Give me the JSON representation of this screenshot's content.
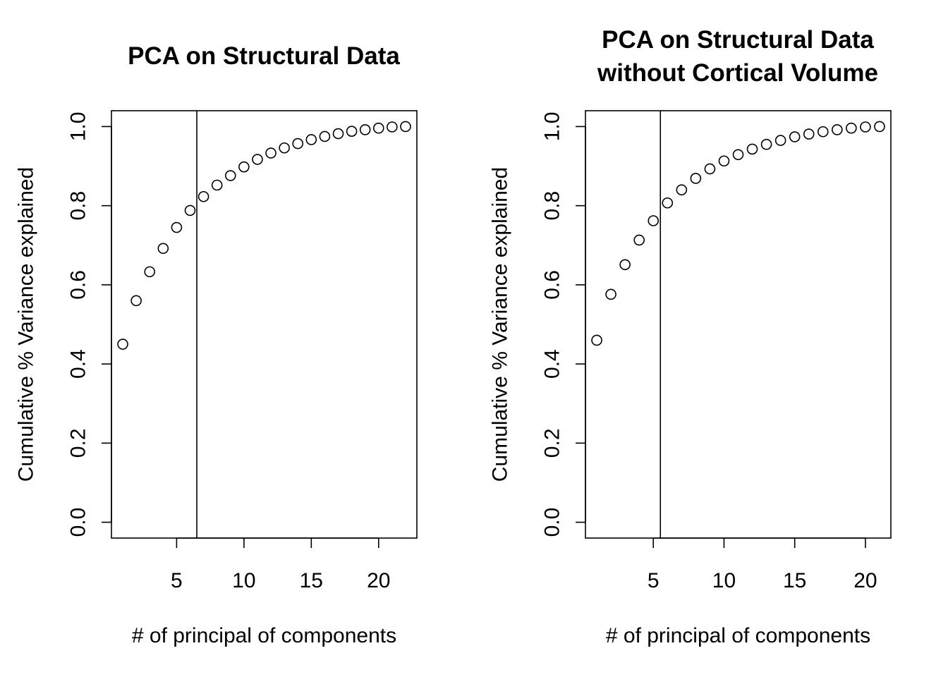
{
  "chart_data": [
    {
      "type": "scatter",
      "title": [
        "PCA on Structural Data"
      ],
      "xlabel": "# of principal of components",
      "ylabel": "Cumulative % Variance explained",
      "xlim": [
        0.16,
        22.84
      ],
      "ylim": [
        -0.04,
        1.04
      ],
      "x_ticks": [
        5,
        10,
        15,
        20
      ],
      "y_ticks": [
        0.0,
        0.2,
        0.4,
        0.6,
        0.8,
        1.0
      ],
      "x_tick_labels": [
        "5",
        "10",
        "15",
        "20"
      ],
      "y_tick_labels": [
        "0.0",
        "0.2",
        "0.4",
        "0.6",
        "0.8",
        "1.0"
      ],
      "vline_x": 6.5,
      "grid": false,
      "marker": "open-circle",
      "x": [
        1,
        2,
        3,
        4,
        5,
        6,
        7,
        8,
        9,
        10,
        11,
        12,
        13,
        14,
        15,
        16,
        17,
        18,
        19,
        20,
        21,
        22
      ],
      "values": [
        0.45,
        0.56,
        0.633,
        0.692,
        0.745,
        0.788,
        0.823,
        0.852,
        0.876,
        0.898,
        0.917,
        0.933,
        0.946,
        0.957,
        0.967,
        0.975,
        0.982,
        0.988,
        0.992,
        0.996,
        0.999,
        1.0
      ]
    },
    {
      "type": "scatter",
      "title": [
        "PCA on Structural Data",
        "without Cortical Volume"
      ],
      "xlabel": "# of principal of components",
      "ylabel": "Cumulative % Variance explained",
      "xlim": [
        0.2,
        21.8
      ],
      "ylim": [
        -0.04,
        1.04
      ],
      "x_ticks": [
        5,
        10,
        15,
        20
      ],
      "y_ticks": [
        0.0,
        0.2,
        0.4,
        0.6,
        0.8,
        1.0
      ],
      "x_tick_labels": [
        "5",
        "10",
        "15",
        "20"
      ],
      "y_tick_labels": [
        "0.0",
        "0.2",
        "0.4",
        "0.6",
        "0.8",
        "1.0"
      ],
      "vline_x": 5.5,
      "grid": false,
      "marker": "open-circle",
      "x": [
        1,
        2,
        3,
        4,
        5,
        6,
        7,
        8,
        9,
        10,
        11,
        12,
        13,
        14,
        15,
        16,
        17,
        18,
        19,
        20,
        21
      ],
      "values": [
        0.46,
        0.576,
        0.651,
        0.713,
        0.762,
        0.807,
        0.84,
        0.869,
        0.893,
        0.913,
        0.929,
        0.943,
        0.955,
        0.965,
        0.974,
        0.981,
        0.987,
        0.992,
        0.996,
        0.999,
        1.0
      ]
    }
  ]
}
